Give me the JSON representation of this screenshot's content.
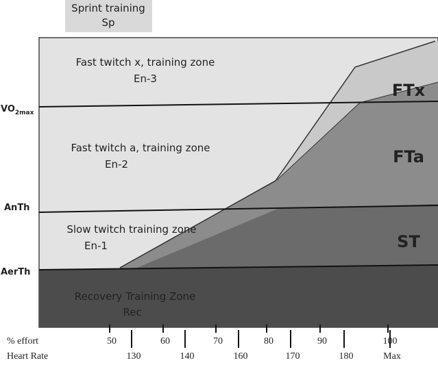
{
  "top_box": {
    "line1": "Sprint training",
    "line2": "Sp"
  },
  "zones": [
    {
      "title": "Fast twitch x, training zone",
      "code": "En-3"
    },
    {
      "title": "Fast twitch a, training zone",
      "code": "En-2"
    },
    {
      "title": "Slow twitch training zone",
      "code": "En-1"
    },
    {
      "title": "Recovery Training Zone",
      "code": "Rec"
    }
  ],
  "fibers": [
    "FTx",
    "FTa",
    "ST"
  ],
  "thresholds": [
    {
      "text": "VO",
      "subscript": "2max"
    },
    {
      "text": "AnTh"
    },
    {
      "text": "AerTh"
    }
  ],
  "x_axis": {
    "effort_label": "% effort",
    "effort_ticks": [
      50,
      60,
      70,
      80,
      90,
      100
    ],
    "hr_label": "Heart Rate",
    "hr_ticks": [
      130,
      140,
      160,
      170,
      180,
      "Max"
    ]
  }
}
